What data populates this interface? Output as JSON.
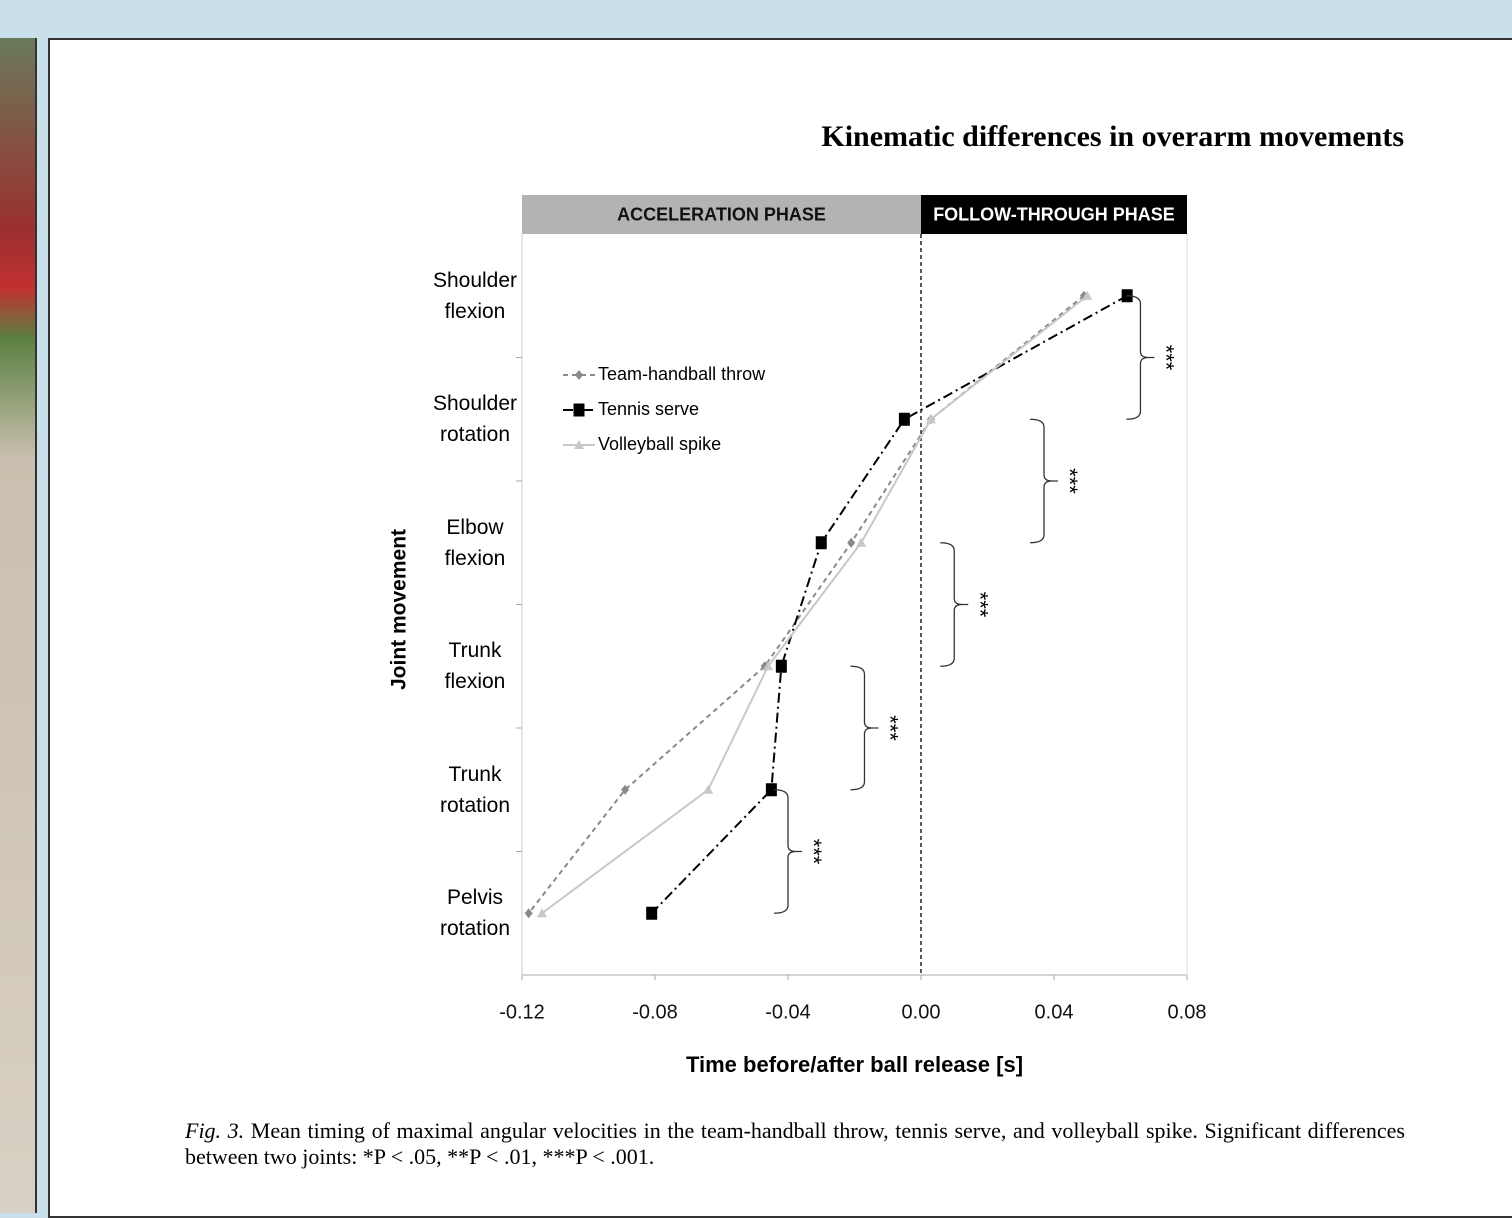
{
  "header": {
    "title": "Kinematic differences in overarm movements"
  },
  "chart_data": {
    "type": "line",
    "orientation": "horizontal",
    "x_label": "Time before/after ball release [s]",
    "y_label": "Joint movement",
    "categories": [
      "Shoulder flexion",
      "Shoulder rotation",
      "Elbow flexion",
      "Trunk flexion",
      "Trunk rotation",
      "Pelvis rotation"
    ],
    "series": [
      {
        "name": "Team-handball throw",
        "color": "#8a8a8a",
        "marker": "diamond",
        "dash": "5 4",
        "values": [
          0.049,
          0.003,
          -0.021,
          -0.047,
          -0.089,
          -0.118
        ]
      },
      {
        "name": "Tennis serve",
        "color": "#000000",
        "marker": "square",
        "dash": "10 4 2 4",
        "values": [
          0.062,
          -0.005,
          -0.03,
          -0.042,
          -0.045,
          -0.081
        ]
      },
      {
        "name": "Volleyball spike",
        "color": "#c8c8c8",
        "marker": "triangle",
        "dash": "none",
        "values": [
          0.05,
          0.003,
          -0.018,
          -0.046,
          -0.064,
          -0.114
        ]
      }
    ],
    "xlim": [
      -0.12,
      0.08
    ],
    "xticks": [
      -0.12,
      -0.08,
      -0.04,
      {
        "value": 0,
        "label": "0.00"
      },
      0.04,
      0.08
    ],
    "phases": [
      {
        "label": "ACCELERATION PHASE",
        "start": -0.12,
        "end": 0,
        "color": "#b3b3b3",
        "text_color": "#111111"
      },
      {
        "label": "FOLLOW-THROUGH PHASE",
        "start": 0,
        "end": 0.08,
        "color": "#000000",
        "text_color": "#ffffff"
      }
    ],
    "reference_x": 0,
    "legend": "upper-left",
    "significance": [
      {
        "label": "***",
        "x": 0.066,
        "rows": [
          0,
          1
        ]
      },
      {
        "label": "***",
        "x": 0.037,
        "rows": [
          1,
          2
        ]
      },
      {
        "label": "***",
        "x": 0.01,
        "rows": [
          2,
          3
        ]
      },
      {
        "label": "***",
        "x": -0.017,
        "rows": [
          3,
          4
        ]
      },
      {
        "label": "***",
        "x": -0.04,
        "rows": [
          4,
          5
        ]
      }
    ]
  },
  "caption": {
    "label": "Fig. 3.",
    "text": "Mean timing of maximal angular velocities in the team-handball throw, tennis serve, and volleyball spike. Significant differences between two joints: *P < .05, **P < .01, ***P < .001."
  }
}
